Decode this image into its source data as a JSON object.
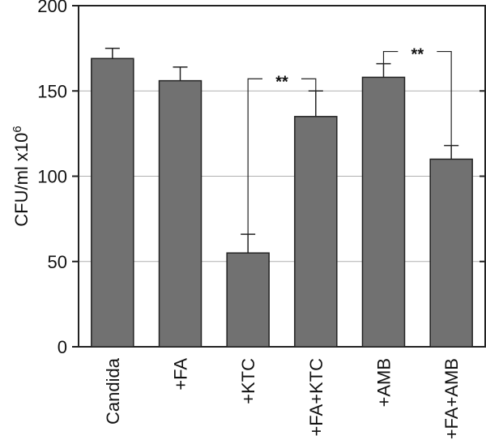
{
  "chart_data": {
    "type": "bar",
    "title": "",
    "xlabel": "",
    "ylabel": "CFU/ml x10",
    "ylabel_superscript": "6",
    "ylim": [
      0,
      200
    ],
    "yticks": [
      0,
      50,
      100,
      150,
      200
    ],
    "grid": true,
    "categories": [
      "Candida",
      "+FA",
      "+KTC",
      "+FA+KTC",
      "+AMB",
      "+FA+AMB"
    ],
    "values": [
      169,
      156,
      55,
      135,
      158,
      110
    ],
    "errors": [
      6,
      8,
      11,
      15,
      8,
      8
    ],
    "bar_color": "#717171",
    "annotations": [
      {
        "label": "**",
        "from": "+KTC",
        "to": "+FA+KTC"
      },
      {
        "label": "**",
        "from": "+AMB",
        "to": "+FA+AMB"
      }
    ]
  }
}
